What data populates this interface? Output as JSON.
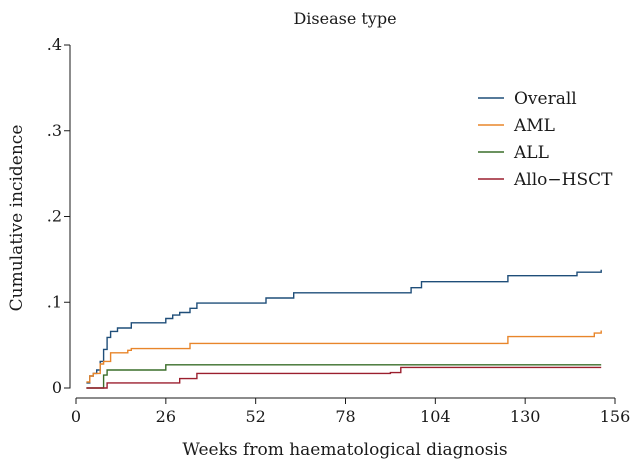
{
  "chart_data": {
    "type": "line",
    "title": "Disease type",
    "xlabel": "Weeks from haematological diagnosis",
    "ylabel": "Cumulative incidence",
    "xlim": [
      0,
      156
    ],
    "ylim": [
      0,
      0.4
    ],
    "x_ticks": [
      0,
      26,
      52,
      78,
      104,
      130,
      156
    ],
    "x_tick_labels": [
      "0",
      "26",
      "52",
      "78",
      "104",
      "130",
      "156"
    ],
    "y_ticks": [
      0,
      0.1,
      0.2,
      0.3,
      0.4
    ],
    "y_tick_labels": [
      "0",
      ".1",
      ".2",
      ".3",
      ".4"
    ],
    "grid": false,
    "legend_position": "top-right",
    "series": [
      {
        "name": "Overall",
        "color": "#1f4e79",
        "step": true,
        "points": [
          [
            3,
            0.006
          ],
          [
            4,
            0.014
          ],
          [
            5,
            0.017
          ],
          [
            6,
            0.021
          ],
          [
            7,
            0.031
          ],
          [
            8,
            0.045
          ],
          [
            9,
            0.059
          ],
          [
            10,
            0.066
          ],
          [
            12,
            0.07
          ],
          [
            16,
            0.076
          ],
          [
            26,
            0.081
          ],
          [
            28,
            0.085
          ],
          [
            30,
            0.088
          ],
          [
            33,
            0.093
          ],
          [
            35,
            0.099
          ],
          [
            55,
            0.105
          ],
          [
            63,
            0.111
          ],
          [
            97,
            0.117
          ],
          [
            100,
            0.124
          ],
          [
            125,
            0.131
          ],
          [
            145,
            0.135
          ],
          [
            152,
            0.138
          ]
        ]
      },
      {
        "name": "AML",
        "color": "#e8852a",
        "step": true,
        "points": [
          [
            3,
            0.007
          ],
          [
            4,
            0.014
          ],
          [
            5,
            0.017
          ],
          [
            7,
            0.028
          ],
          [
            8,
            0.031
          ],
          [
            10,
            0.041
          ],
          [
            15,
            0.044
          ],
          [
            16,
            0.046
          ],
          [
            33,
            0.052
          ],
          [
            125,
            0.06
          ],
          [
            150,
            0.064
          ],
          [
            152,
            0.067
          ]
        ]
      },
      {
        "name": "ALL",
        "color": "#3a6e2a",
        "step": true,
        "points": [
          [
            3,
            0.0
          ],
          [
            8,
            0.015
          ],
          [
            9,
            0.021
          ],
          [
            26,
            0.027
          ],
          [
            152,
            0.027
          ]
        ]
      },
      {
        "name": "Allo−HSCT",
        "color": "#9b1f2e",
        "step": true,
        "points": [
          [
            3,
            0.0
          ],
          [
            8,
            0.0
          ],
          [
            9,
            0.006
          ],
          [
            27,
            0.006
          ],
          [
            30,
            0.011
          ],
          [
            35,
            0.017
          ],
          [
            91,
            0.018
          ],
          [
            94,
            0.024
          ],
          [
            152,
            0.024
          ]
        ]
      }
    ]
  }
}
